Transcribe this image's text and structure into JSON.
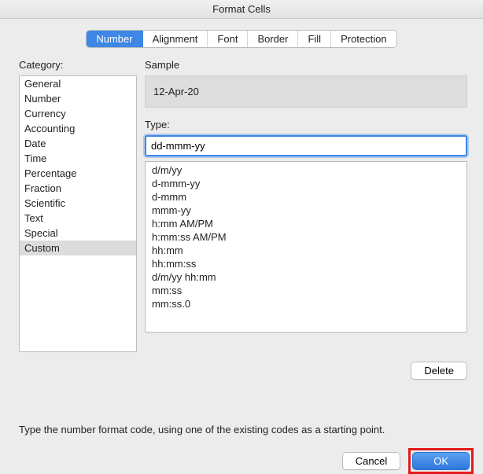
{
  "window": {
    "title": "Format Cells"
  },
  "tabs": {
    "items": [
      "Number",
      "Alignment",
      "Font",
      "Border",
      "Fill",
      "Protection"
    ],
    "active_index": 0
  },
  "left": {
    "label": "Category:",
    "categories": [
      "General",
      "Number",
      "Currency",
      "Accounting",
      "Date",
      "Time",
      "Percentage",
      "Fraction",
      "Scientific",
      "Text",
      "Special",
      "Custom"
    ],
    "selected_index": 11
  },
  "right": {
    "sample_label": "Sample",
    "sample_value": "12-Apr-20",
    "type_label": "Type:",
    "type_value": "dd-mmm-yy",
    "type_list": [
      "d/m/yy",
      "d-mmm-yy",
      "d-mmm",
      "mmm-yy",
      "h:mm AM/PM",
      "h:mm:ss AM/PM",
      "hh:mm",
      "hh:mm:ss",
      "d/m/yy hh:mm",
      "mm:ss",
      "mm:ss.0"
    ]
  },
  "buttons": {
    "delete": "Delete",
    "cancel": "Cancel",
    "ok": "OK"
  },
  "hint": "Type the number format code, using one of the existing codes as a starting point.",
  "colors": {
    "accent": "#3e87e6",
    "highlight_border": "#e21b1b",
    "window_bg": "#ececec",
    "selected_bg": "#dcdcdc"
  }
}
